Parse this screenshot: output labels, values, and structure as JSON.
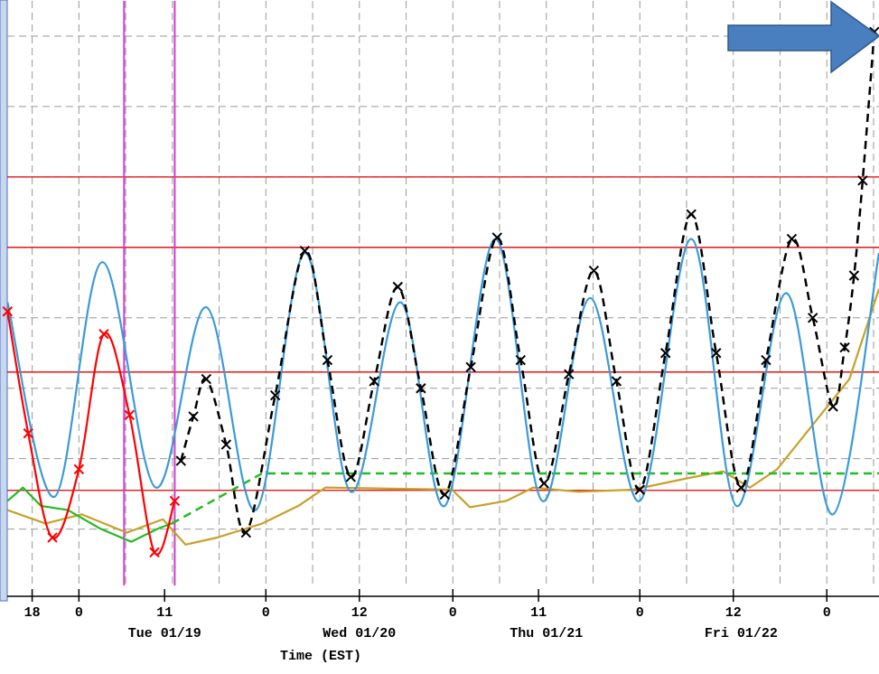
{
  "chart_data": {
    "type": "line",
    "x_label": "Time (EST)",
    "xlim": [
      14.8,
      126.7
    ],
    "ylim": [
      -0.8,
      7.5
    ],
    "yticks": [
      0,
      1,
      2,
      3,
      4,
      5,
      6,
      7
    ],
    "xgrid": [
      18,
      24,
      30,
      36,
      42,
      48,
      54,
      60,
      66,
      72,
      78,
      84,
      90,
      96,
      102,
      108,
      114,
      120,
      126
    ],
    "xticks": [
      {
        "value": 18,
        "label": "18"
      },
      {
        "value": 24,
        "label": "0"
      },
      {
        "value": 35,
        "label": "11"
      },
      {
        "value": 48,
        "label": "0"
      },
      {
        "value": 60,
        "label": "12"
      },
      {
        "value": 72,
        "label": "0"
      },
      {
        "value": 83,
        "label": "11"
      },
      {
        "value": 96,
        "label": "0"
      },
      {
        "value": 108,
        "label": "12"
      },
      {
        "value": 120,
        "label": "0"
      }
    ],
    "date_ticks": [
      {
        "value": 35,
        "label": "Tue 01/19"
      },
      {
        "value": 60,
        "label": "Wed 01/20"
      },
      {
        "value": 84,
        "label": "Thu 01/21"
      },
      {
        "value": 109,
        "label": "Fri 01/22"
      }
    ],
    "grid": true,
    "thresholds": [
      5,
      4,
      2.23,
      0.55
    ],
    "threshold_color": "#e00000",
    "vertical_markers": [
      29.8,
      36.3
    ],
    "vertical_marker_color": "#d23ad2",
    "series": [
      {
        "color": "#c8a02a",
        "dash": false,
        "smooth": false,
        "x": [
          14.84,
          19.71,
          24.35,
          30.14,
          34.78,
          37.68,
          41.74,
          47.54,
          52.17,
          55.65,
          71.88,
          74.2,
          78.84,
          82.32,
          88.12,
          95.07,
          102.03,
          106.67,
          110.14,
          113.62,
          118.26,
          122.9,
          126.7
        ],
        "values": [
          0.27,
          0.08,
          0.21,
          -0.05,
          0.14,
          -0.22,
          -0.12,
          0.08,
          0.33,
          0.59,
          0.56,
          0.31,
          0.4,
          0.59,
          0.53,
          0.56,
          0.72,
          0.82,
          0.59,
          0.85,
          1.49,
          2.13,
          3.41
        ]
      },
      {
        "color": "#22bb22",
        "dash": false,
        "smooth": false,
        "x": [
          14.84,
          16.81,
          19.13,
          22.6,
          26.67,
          30.72,
          34.2,
          35.94
        ],
        "values": [
          0.4,
          0.59,
          0.33,
          0.27,
          0.01,
          -0.18,
          0.01,
          0.08
        ]
      },
      {
        "color": "#22bb22",
        "dash": true,
        "smooth": false,
        "x": [
          35.94,
          47.5,
          126.7
        ],
        "values": [
          0.08,
          0.79,
          0.79
        ]
      },
      {
        "color": "#3a9ad9",
        "dash": false,
        "smooth": true,
        "x": [
          14.84,
          20.87,
          27.0,
          33.86,
          40.35,
          46.7,
          52.99,
          58.9,
          65.28,
          70.96,
          77.45,
          83.48,
          89.62,
          96.0,
          102.6,
          108.4,
          114.8,
          120.8,
          126.7
        ],
        "values": [
          3.22,
          0.46,
          3.79,
          0.59,
          3.15,
          0.27,
          3.92,
          0.53,
          3.22,
          0.33,
          4.12,
          0.4,
          3.28,
          0.4,
          4.12,
          0.33,
          3.35,
          0.21,
          3.92
        ]
      },
      {
        "color": "#ff0000",
        "dash": false,
        "smooth": true,
        "marker": "x",
        "x": [
          14.84,
          17.5,
          20.6,
          24.0,
          27.2,
          30.5,
          33.7,
          36.3
        ],
        "values": [
          3.09,
          1.36,
          -0.12,
          0.85,
          2.77,
          1.62,
          -0.33,
          0.4
        ]
      },
      {
        "color": "#000000",
        "dash": true,
        "smooth": true,
        "marker": "x",
        "x": [
          37.1,
          38.7,
          40.35,
          42.9,
          45.45,
          49.2,
          52.99,
          55.9,
          58.9,
          61.9,
          64.93,
          67.9,
          70.96,
          74.3,
          77.68,
          80.7,
          83.7,
          86.9,
          90.1,
          93.0,
          96.0,
          99.3,
          102.6,
          105.8,
          109.0,
          112.2,
          115.5,
          118.2,
          120.8,
          122.3,
          123.5,
          124.6,
          126.1
        ],
        "values": [
          0.97,
          1.6,
          2.13,
          1.2,
          -0.05,
          1.9,
          3.95,
          2.4,
          0.74,
          2.1,
          3.44,
          2.0,
          0.49,
          2.3,
          4.14,
          2.4,
          0.65,
          2.2,
          3.67,
          2.1,
          0.56,
          2.5,
          4.47,
          2.5,
          0.59,
          2.4,
          4.12,
          3.0,
          1.74,
          2.58,
          3.6,
          4.95,
          7.06
        ]
      }
    ]
  }
}
